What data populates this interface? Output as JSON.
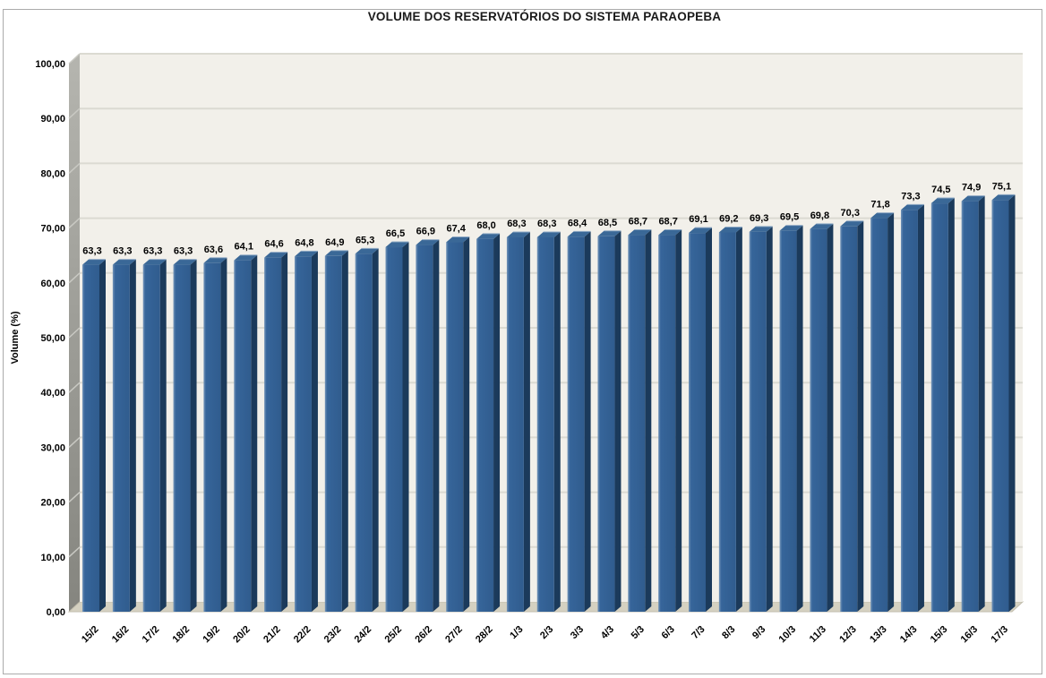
{
  "chart": {
    "title": "VOLUME DOS RESERVATÓRIOS DO SISTEMA PARAOPEBA",
    "y_axis_title": "Volume (%)"
  },
  "chart_data": {
    "type": "bar",
    "style": "3d-column",
    "title": "VOLUME DOS RESERVATÓRIOS DO SISTEMA PARAOPEBA",
    "xlabel": "",
    "ylabel": "Volume (%)",
    "ylim": [
      0,
      100
    ],
    "ytick_step": 10,
    "ytick_labels": [
      "0,00",
      "10,00",
      "20,00",
      "30,00",
      "40,00",
      "50,00",
      "60,00",
      "70,00",
      "80,00",
      "90,00",
      "100,00"
    ],
    "decimal_separator": ",",
    "grid": true,
    "legend_position": "none",
    "categories": [
      "15/2",
      "16/2",
      "17/2",
      "18/2",
      "19/2",
      "20/2",
      "21/2",
      "22/2",
      "23/2",
      "24/2",
      "25/2",
      "26/2",
      "27/2",
      "28/2",
      "1/3",
      "2/3",
      "3/3",
      "4/3",
      "5/3",
      "6/3",
      "7/3",
      "8/3",
      "9/3",
      "10/3",
      "11/3",
      "12/3",
      "13/3",
      "14/3",
      "15/3",
      "16/3",
      "17/3"
    ],
    "values": [
      63.3,
      63.3,
      63.3,
      63.3,
      63.6,
      64.1,
      64.6,
      64.8,
      64.9,
      65.3,
      66.5,
      66.9,
      67.4,
      68.0,
      68.3,
      68.3,
      68.4,
      68.5,
      68.7,
      68.7,
      69.1,
      69.2,
      69.3,
      69.5,
      69.8,
      70.3,
      71.8,
      73.3,
      74.5,
      74.9,
      75.1
    ],
    "value_labels": [
      "63,3",
      "63,3",
      "63,3",
      "63,3",
      "63,6",
      "64,1",
      "64,6",
      "64,8",
      "64,9",
      "65,3",
      "66,5",
      "66,9",
      "67,4",
      "68,0",
      "68,3",
      "68,3",
      "68,4",
      "68,5",
      "68,7",
      "68,7",
      "69,1",
      "69,2",
      "69,3",
      "69,5",
      "69,8",
      "70,3",
      "71,8",
      "73,3",
      "74,5",
      "74,9",
      "75,1"
    ]
  },
  "colors": {
    "plot_background": "#F2F0EA",
    "gridline": "#DBDAD2",
    "wall_light": "#B5B5AF",
    "wall_dark": "#85857F",
    "wall_gridline": "#C9C9C3",
    "floor": "#D5D1C1",
    "floor_edge": "#C2BEAE",
    "bar_face": "#36659A",
    "bar_face_highlight": "#7495B9",
    "bar_side": "#1B3A5B",
    "bar_top": "#3A6897",
    "bar_top_edge": "#93ACC6",
    "text": "#000000",
    "border": "#ABABAB"
  }
}
